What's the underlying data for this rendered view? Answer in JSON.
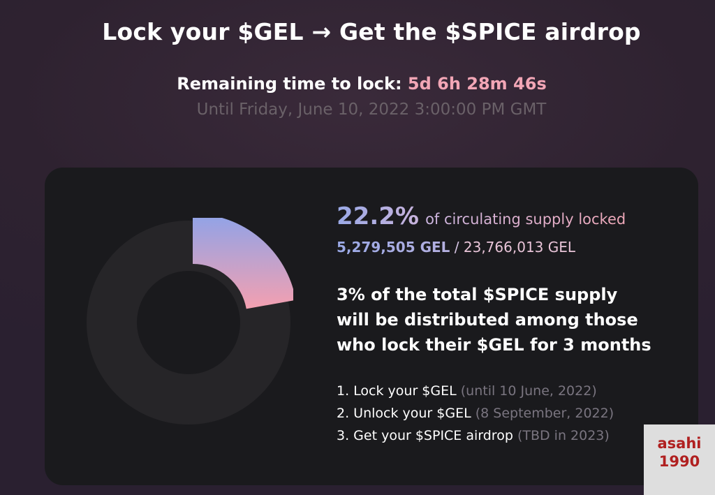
{
  "header": {
    "title": "Lock your $GEL → Get the $SPICE airdrop",
    "timer_label": "Remaining time to lock:",
    "timer_value": "5d 6h 28m 46s",
    "until": "Until Friday, June 10, 2022 3:00:00 PM GMT"
  },
  "stats": {
    "percent": "22.2%",
    "percent_label": "of circulating supply locked",
    "locked_amount": "5,279,505 GEL",
    "separator": "/",
    "total_amount": "23,766,013 GEL",
    "locked_fraction": 0.222
  },
  "description": {
    "line1": "3% of the total $SPICE supply",
    "line2": "will be distributed among those",
    "line3": "who lock their $GEL for 3 months"
  },
  "steps": [
    {
      "text": "1. Lock your $GEL",
      "note": "(until 10 June, 2022)"
    },
    {
      "text": "2. Unlock your $GEL",
      "note": "(8 September, 2022)"
    },
    {
      "text": "3. Get your $SPICE airdrop",
      "note": "(TBD in 2023)"
    }
  ],
  "watermark": {
    "line1": "asahi",
    "line2": "1990"
  },
  "colors": {
    "background": "#2e2230",
    "card": "#1a1a1d",
    "timer_accent": "#f2a6b6",
    "gradient_start": "#8fa3e8",
    "gradient_end": "#f4a0b0",
    "donut_track": "#262528",
    "watermark_text": "#b02020"
  }
}
